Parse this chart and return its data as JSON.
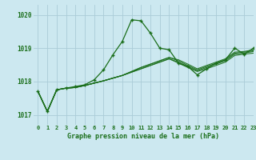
{
  "title": "Graphe pression niveau de la mer (hPa)",
  "background_color": "#cce8f0",
  "grid_color": "#aaccd8",
  "line_color": "#1a6e1a",
  "xlim": [
    -0.5,
    23
  ],
  "ylim": [
    1016.7,
    1020.3
  ],
  "yticks": [
    1017,
    1018,
    1019,
    1020
  ],
  "xticks": [
    0,
    1,
    2,
    3,
    4,
    5,
    6,
    7,
    8,
    9,
    10,
    11,
    12,
    13,
    14,
    15,
    16,
    17,
    18,
    19,
    20,
    21,
    22,
    23
  ],
  "main_series": [
    1017.7,
    1017.1,
    1017.75,
    1017.8,
    1017.85,
    1017.9,
    1018.05,
    1018.35,
    1018.8,
    1019.2,
    1019.85,
    1019.82,
    1019.45,
    1019.0,
    1018.95,
    1018.55,
    1018.45,
    1018.2,
    1018.38,
    1018.55,
    1018.65,
    1019.0,
    1018.82,
    1019.0
  ],
  "bundle_series": [
    [
      1017.7,
      1017.1,
      1017.75,
      1017.8,
      1017.82,
      1017.88,
      1017.95,
      1018.02,
      1018.1,
      1018.18,
      1018.28,
      1018.38,
      1018.48,
      1018.58,
      1018.68,
      1018.55,
      1018.42,
      1018.3,
      1018.38,
      1018.48,
      1018.58,
      1018.78,
      1018.82,
      1018.85
    ],
    [
      1017.7,
      1017.1,
      1017.75,
      1017.8,
      1017.82,
      1017.88,
      1017.95,
      1018.02,
      1018.1,
      1018.18,
      1018.28,
      1018.38,
      1018.48,
      1018.58,
      1018.68,
      1018.58,
      1018.45,
      1018.32,
      1018.42,
      1018.52,
      1018.62,
      1018.82,
      1018.85,
      1018.9
    ],
    [
      1017.7,
      1017.1,
      1017.75,
      1017.8,
      1017.82,
      1017.88,
      1017.95,
      1018.02,
      1018.1,
      1018.18,
      1018.3,
      1018.42,
      1018.52,
      1018.62,
      1018.72,
      1018.62,
      1018.48,
      1018.35,
      1018.45,
      1018.55,
      1018.65,
      1018.85,
      1018.88,
      1018.92
    ],
    [
      1017.7,
      1017.1,
      1017.75,
      1017.8,
      1017.82,
      1017.88,
      1017.95,
      1018.02,
      1018.1,
      1018.18,
      1018.3,
      1018.42,
      1018.52,
      1018.62,
      1018.72,
      1018.65,
      1018.52,
      1018.38,
      1018.48,
      1018.58,
      1018.68,
      1018.88,
      1018.9,
      1018.95
    ]
  ]
}
